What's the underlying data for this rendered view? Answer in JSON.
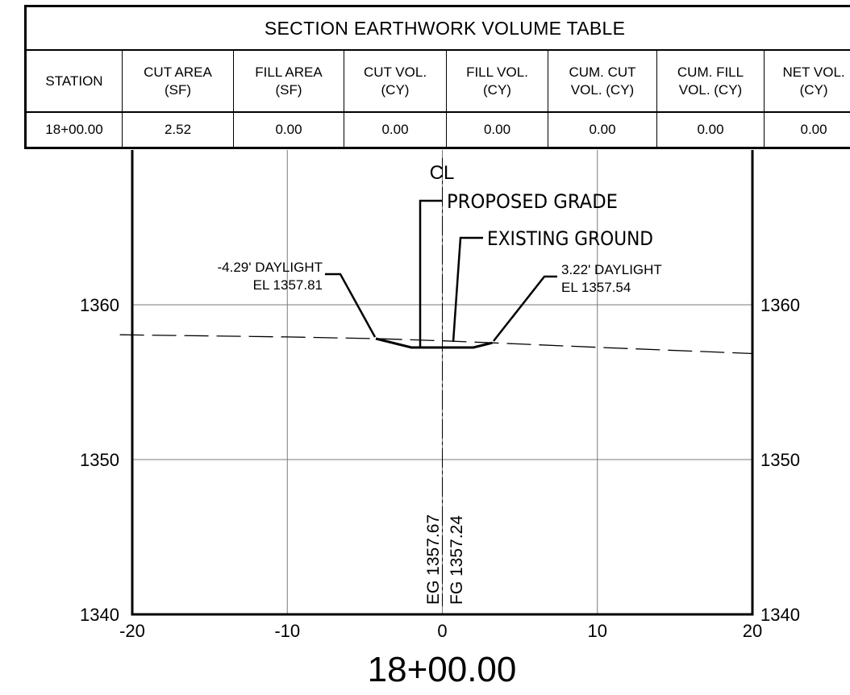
{
  "table": {
    "title": "SECTION EARTHWORK VOLUME TABLE",
    "columns": [
      {
        "line1": "STATION",
        "line2": ""
      },
      {
        "line1": "CUT AREA",
        "line2": "(SF)"
      },
      {
        "line1": "FILL AREA",
        "line2": "(SF)"
      },
      {
        "line1": "CUT VOL.",
        "line2": "(CY)"
      },
      {
        "line1": "FILL VOL.",
        "line2": "(CY)"
      },
      {
        "line1": "CUM. CUT",
        "line2": "VOL. (CY)"
      },
      {
        "line1": "CUM. FILL",
        "line2": "VOL. (CY)"
      },
      {
        "line1": "NET VOL.",
        "line2": "(CY)"
      }
    ],
    "row": [
      "18+00.00",
      "2.52",
      "0.00",
      "0.00",
      "0.00",
      "0.00",
      "0.00",
      "0.00"
    ]
  },
  "section": {
    "station": "18+00.00",
    "centerline_label": "CL",
    "proposed_grade_label": "PROPOSED GRADE",
    "existing_ground_label": "EXISTING GROUND",
    "left_daylight": {
      "line1": "-4.29' DAYLIGHT",
      "line2": "EL 1357.81"
    },
    "right_daylight": {
      "line1": "3.22' DAYLIGHT",
      "line2": "EL 1357.54"
    },
    "eg_label": "EG 1357.67",
    "fg_label": "FG 1357.24"
  },
  "chart_data": {
    "type": "line",
    "title": "18+00.00",
    "xlim": [
      -20,
      20
    ],
    "ylim": [
      1340,
      1380
    ],
    "x_ticks": [
      -20,
      -10,
      0,
      10,
      20
    ],
    "x_tick_labels": [
      "-20",
      "-10",
      "0",
      "10",
      "20"
    ],
    "y_ticks": [
      1340,
      1350,
      1360
    ],
    "y_tick_labels": [
      "1340",
      "1350",
      "1360"
    ],
    "grid": true,
    "series": [
      {
        "name": "EXISTING GROUND",
        "style": "dashed",
        "x": [
          -20,
          -10,
          -4.29,
          0,
          3.22,
          10,
          20
        ],
        "y": [
          1358.05,
          1357.92,
          1357.81,
          1357.67,
          1357.54,
          1357.25,
          1356.85
        ]
      },
      {
        "name": "PROPOSED GRADE",
        "style": "solid",
        "x": [
          -4.29,
          -2.0,
          0,
          2.0,
          3.22
        ],
        "y": [
          1357.81,
          1357.24,
          1357.24,
          1357.24,
          1357.54
        ]
      }
    ]
  }
}
